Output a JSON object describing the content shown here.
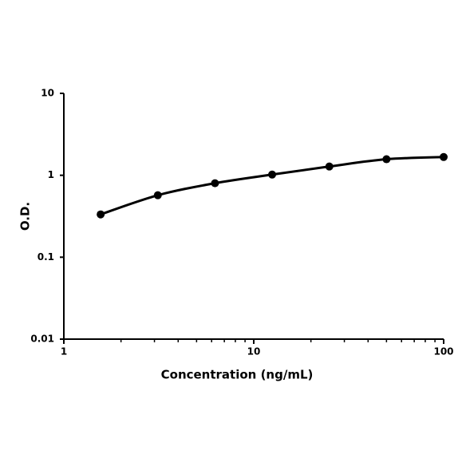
{
  "chart_data": {
    "type": "line",
    "x_label": "Concentration (ng/mL)",
    "y_label": "O.D.",
    "x": [
      1.5625,
      3.125,
      6.25,
      12.5,
      25,
      50,
      100
    ],
    "series": [
      {
        "color": "#000000",
        "values": [
          0.333,
          0.571,
          0.8,
          1.02,
          1.28,
          1.57,
          1.67
        ]
      }
    ],
    "xlim": [
      1,
      100
    ],
    "ylim": [
      0.01,
      10
    ],
    "xticks": [
      1,
      10,
      100
    ],
    "yticks": [
      0.01,
      0.1,
      1,
      10
    ],
    "x_minor_ticks": [
      2,
      3,
      4,
      5,
      6,
      7,
      8,
      9,
      20,
      30,
      40,
      50,
      60,
      70,
      80,
      90
    ],
    "x_log": true,
    "y_log": true,
    "smooth": true,
    "markers": true,
    "grid": false
  }
}
